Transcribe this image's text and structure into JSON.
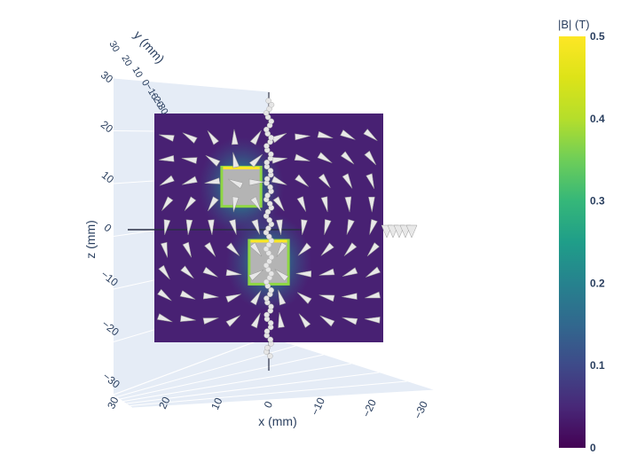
{
  "chart_data": {
    "type": "heatmap",
    "subtype": "3d-scene-magnetic-field",
    "title": "",
    "axes": {
      "x": {
        "label": "x (mm)",
        "range": [
          30,
          -30
        ],
        "ticks": [
          "30",
          "20",
          "10",
          "0",
          "−10",
          "−20",
          "−30"
        ],
        "tick_values": [
          30,
          20,
          10,
          0,
          -10,
          -20,
          -30
        ]
      },
      "y": {
        "label": "y (mm)",
        "ticks": [
          "30",
          "20",
          "10",
          "0",
          "−10",
          "−20",
          "−30"
        ],
        "tick_values": [
          30,
          20,
          10,
          0,
          -10,
          -20,
          -30
        ]
      },
      "z": {
        "label": "z (mm)",
        "range": [
          -30,
          30
        ],
        "ticks": [
          "30",
          "20",
          "10",
          "0",
          "−10",
          "−20",
          "−30"
        ],
        "tick_values": [
          30,
          20,
          10,
          0,
          -10,
          -20,
          -30
        ]
      }
    },
    "colorbar": {
      "title": "|B| (T)",
      "colorscale": "Viridis",
      "range": [
        0,
        0.5
      ],
      "ticks": [
        "0",
        "0.1",
        "0.2",
        "0.3",
        "0.4",
        "0.5"
      ],
      "tick_values": [
        0,
        0.1,
        0.2,
        0.3,
        0.4,
        0.5
      ]
    },
    "slice_plane": {
      "orientation": "xz",
      "y": 0,
      "x_range": [
        -25,
        25
      ],
      "z_range": [
        -25,
        25
      ]
    },
    "magnets": [
      {
        "name": "",
        "x_range": [
          2,
          10
        ],
        "z_range": [
          5,
          13
        ],
        "color": "#b4b4b4"
      },
      {
        "name": "",
        "x_range": [
          -4,
          4
        ],
        "z_range": [
          -12,
          -3
        ],
        "color": "#b4b4b4"
      }
    ],
    "sensor_path": {
      "x": 0,
      "z_range": [
        -28,
        28
      ],
      "marker_color": "#e6e6e6"
    },
    "cones": {
      "grid_x": [
        22.5,
        17.5,
        12.5,
        7.5,
        2.5,
        -2.5,
        -7.5,
        -12.5,
        -17.5,
        -22.5
      ],
      "grid_z": [
        20,
        15,
        10,
        5,
        0,
        -5,
        -10,
        -15,
        -20
      ],
      "color": "#e8e8e8"
    },
    "grid": true,
    "legend": "none"
  }
}
